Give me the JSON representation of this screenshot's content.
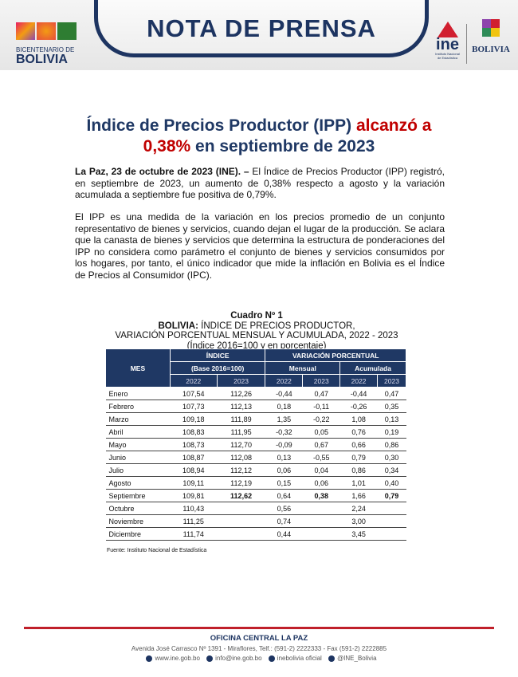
{
  "header": {
    "banner": "NOTA DE PRENSA",
    "bicentenario_line1": "BICENTENARIO DE",
    "bicentenario_line2": "BOLIVIA",
    "ine_logo": "ine",
    "ine_sub": "Instituto Nacional de Estadística",
    "bolivia_logo": "BOLIVIA"
  },
  "title": {
    "part1": "Índice de Precios Productor (IPP) ",
    "part2": "alcanzó a",
    "part3": "0,38%",
    "part4": " en septiembre de 2023"
  },
  "body": {
    "lead_bold": "La Paz, 23 de octubre de 2023 (INE). –",
    "lead": " El Índice de Precios Productor (IPP) registró, en septiembre de 2023, un aumento de 0,38% respecto a agosto y la variación acumulada a septiembre fue positiva de 0,79%.",
    "para2": "El IPP es una medida de la variación en los precios promedio de un conjunto representativo de bienes y servicios, cuando dejan el lugar de la producción. Se aclara que la canasta de bienes y servicios que determina la estructura de ponderaciones del IPP no considera como parámetro el conjunto de bienes y servicios consumidos por los hogares, por tanto, el único indicador que mide la inflación en Bolivia es el Índice de Precios al Consumidor (IPC)."
  },
  "table": {
    "caption": "Cuadro Nº 1",
    "subtitle_bold": "BOLIVIA:",
    "subtitle": " ÍNDICE DE PRECIOS PRODUCTOR,",
    "subtitle2": "VARIACIÓN PORCENTUAL MENSUAL Y ACUMULADA, 2022 - 2023",
    "subtitle3": "(Índice 2016=100 y en porcentaje)",
    "h_mes": "MES",
    "h_indice": "ÍNDICE",
    "h_base": "(Base 2016=100)",
    "h_var": "VARIACIÓN PORCENTUAL",
    "h_mensual": "Mensual",
    "h_acum": "Acumulada",
    "y1": "2022",
    "y2": "2023",
    "rows": [
      [
        "Enero",
        "107,54",
        "112,26",
        "-0,44",
        "0,47",
        "-0,44",
        "0,47"
      ],
      [
        "Febrero",
        "107,73",
        "112,13",
        "0,18",
        "-0,11",
        "-0,26",
        "0,35"
      ],
      [
        "Marzo",
        "109,18",
        "111,89",
        "1,35",
        "-0,22",
        "1,08",
        "0,13"
      ],
      [
        "Abril",
        "108,83",
        "111,95",
        "-0,32",
        "0,05",
        "0,76",
        "0,19"
      ],
      [
        "Mayo",
        "108,73",
        "112,70",
        "-0,09",
        "0,67",
        "0,66",
        "0,86"
      ],
      [
        "Junio",
        "108,87",
        "112,08",
        "0,13",
        "-0,55",
        "0,79",
        "0,30"
      ],
      [
        "Julio",
        "108,94",
        "112,12",
        "0,06",
        "0,04",
        "0,86",
        "0,34"
      ],
      [
        "Agosto",
        "109,11",
        "112,19",
        "0,15",
        "0,06",
        "1,01",
        "0,40"
      ],
      [
        "Septiembre",
        "109,81",
        "112,62",
        "0,64",
        "0,38",
        "1,66",
        "0,79"
      ],
      [
        "Octubre",
        "110,43",
        "",
        "0,56",
        "",
        "2,24",
        ""
      ],
      [
        "Noviembre",
        "111,25",
        "",
        "0,74",
        "",
        "3,00",
        ""
      ],
      [
        "Diciembre",
        "111,74",
        "",
        "0,44",
        "",
        "3,45",
        ""
      ]
    ],
    "source": "Fuente: Instituto Nacional de Estadística"
  },
  "footer": {
    "office": "OFICINA CENTRAL LA PAZ",
    "address": "Avenida José Carrasco Nº 1391 - Miraflores, Telf.: (591-2) 2222333 - Fax (591-2) 2222885",
    "web": "www.ine.gob.bo",
    "email": "info@ine.gob.bo",
    "facebook": "inebolivia oficial",
    "twitter": "@INE_Bolivia"
  }
}
